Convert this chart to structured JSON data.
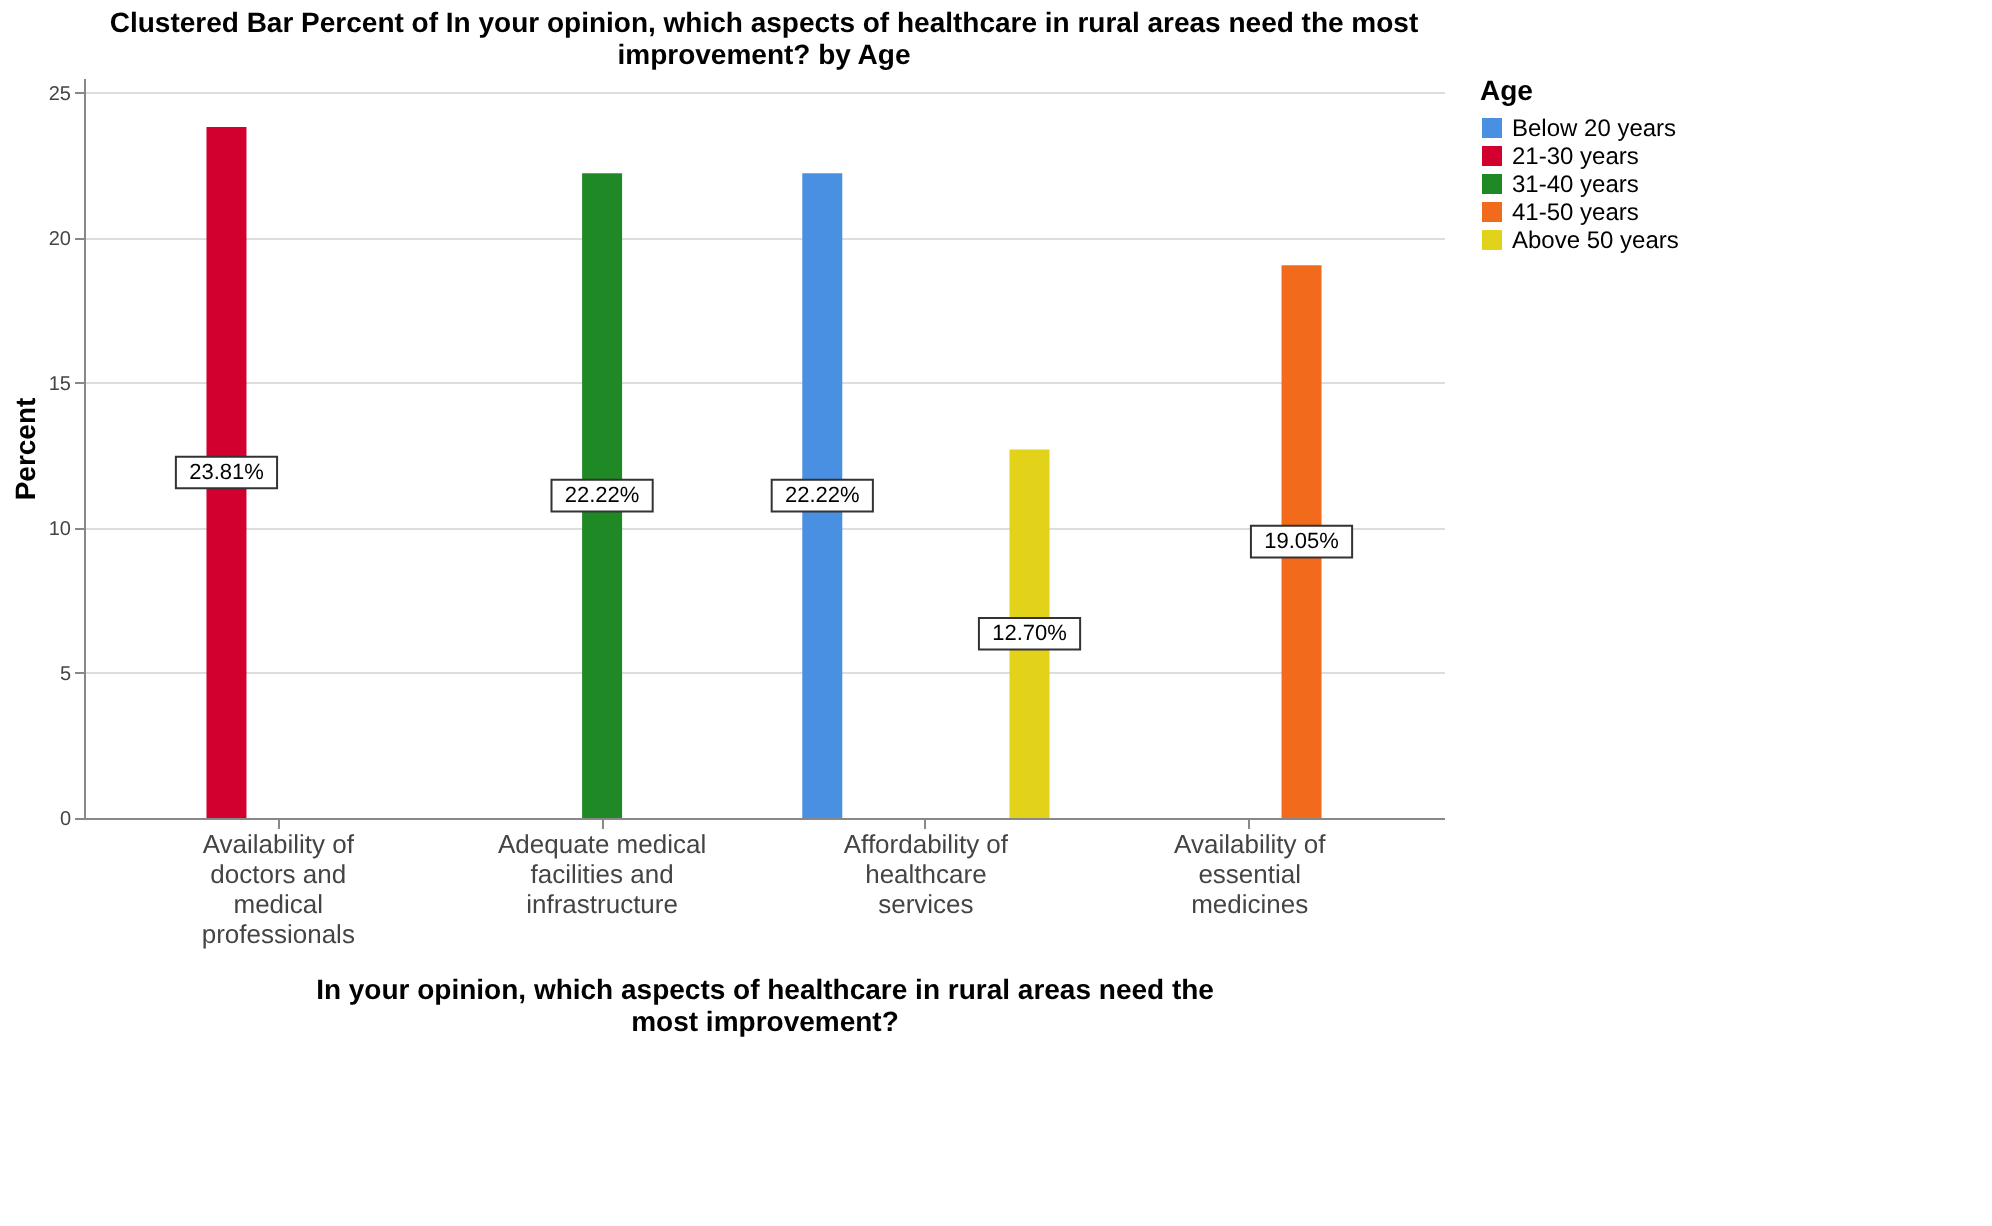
{
  "chart_data": {
    "type": "bar",
    "title": "Clustered Bar Percent of In your opinion, which aspects of healthcare in rural areas need the most improvement?  by Age",
    "xlabel": "In your opinion, which aspects of healthcare in rural areas need the most improvement?",
    "ylabel": "Percent",
    "legend_title": "Age",
    "categories": [
      "Availability of doctors and medical professionals",
      "Adequate medical facilities and infrastructure",
      "Affordability of healthcare services",
      "Availability of essential medicines"
    ],
    "series": [
      {
        "name": "Below 20 years",
        "color": "#4a90e2",
        "values": [
          null,
          null,
          22.22,
          null
        ],
        "value_labels": [
          null,
          null,
          "22.22%",
          null
        ]
      },
      {
        "name": "21-30 years",
        "color": "#d2002e",
        "values": [
          23.81,
          null,
          null,
          null
        ],
        "value_labels": [
          "23.81%",
          null,
          null,
          null
        ]
      },
      {
        "name": "31-40 years",
        "color": "#1f8a25",
        "values": [
          null,
          22.22,
          null,
          null
        ],
        "value_labels": [
          null,
          "22.22%",
          null,
          null
        ]
      },
      {
        "name": "41-50 years",
        "color": "#f26b1d",
        "values": [
          null,
          null,
          null,
          19.05
        ],
        "value_labels": [
          null,
          null,
          null,
          "19.05%"
        ]
      },
      {
        "name": "Above 50 years",
        "color": "#e2d21a",
        "values": [
          null,
          null,
          12.7,
          null
        ],
        "value_labels": [
          null,
          null,
          "12.70%",
          null
        ]
      }
    ],
    "ylim": [
      0,
      25.5
    ],
    "yticks": [
      0,
      5,
      10,
      15,
      20,
      25
    ],
    "grid": "y",
    "legend": "top right"
  }
}
